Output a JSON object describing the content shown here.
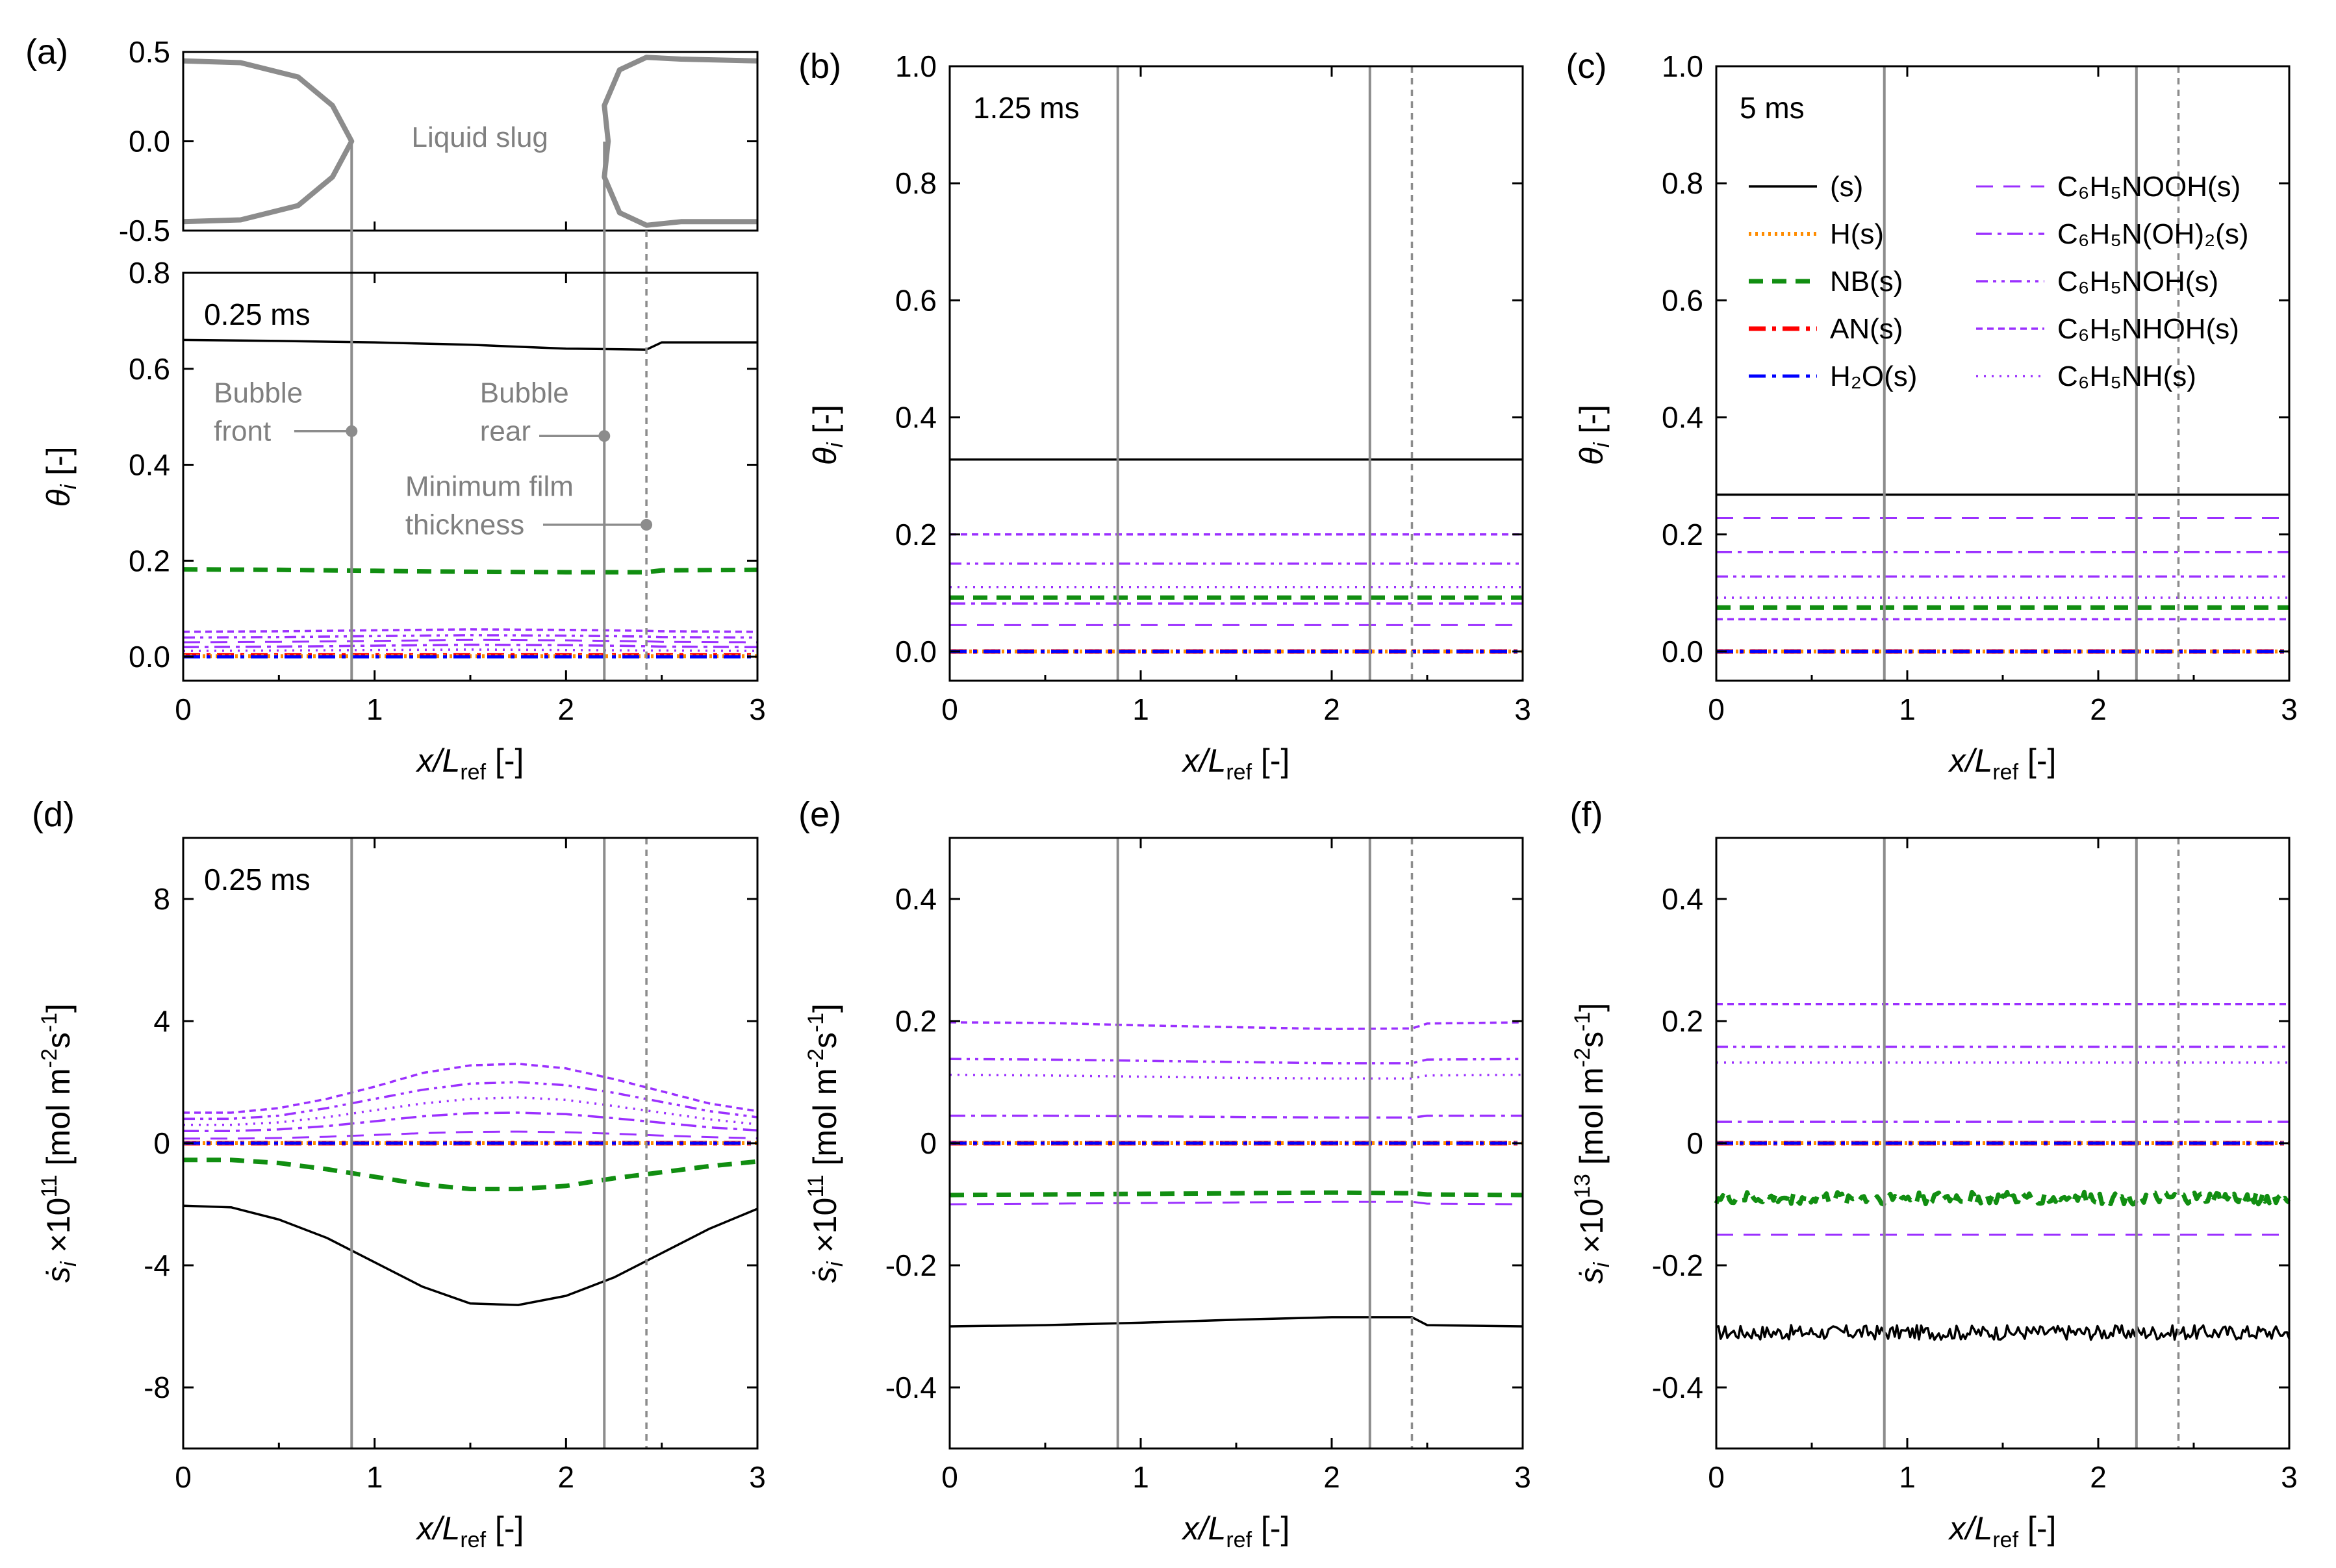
{
  "colors": {
    "solid": "#000000",
    "H": "#ff8c00",
    "NB": "#118e11",
    "AN": "#ff0000",
    "H2O": "#0000ff",
    "violet": "#9b30ff",
    "gray": "#8c8c8c",
    "bubble": "#8c8c8c"
  },
  "common": {
    "x_axis_title_plain": "x/L",
    "x_axis_title_sub": "ref",
    "x_axis_unit": "[-]",
    "x_ticks": [
      "0",
      "1",
      "2",
      "3"
    ],
    "xlim": [
      0,
      3
    ],
    "bubble_front_x": 0.88,
    "bubble_rear_x": 2.2,
    "min_film_x": 2.42
  },
  "annotations": {
    "liquid_slug": "Liquid slug",
    "bubble_front_1": "Bubble",
    "bubble_front_2": "front",
    "bubble_rear_1": "Bubble",
    "bubble_rear_2": "rear",
    "min_film_1": "Minimum film",
    "min_film_2": "thickness"
  },
  "legend": [
    {
      "key": "solid",
      "label": "(s)",
      "style": "solid",
      "color": "#000000"
    },
    {
      "key": "H",
      "label": "H(s)",
      "style": "dotted",
      "color": "#ff8c00"
    },
    {
      "key": "NB",
      "label": "NB(s)",
      "style": "dashed",
      "color": "#118e11"
    },
    {
      "key": "AN",
      "label": "AN(s)",
      "style": "dashdot",
      "color": "#ff0000"
    },
    {
      "key": "H2O",
      "label": "H₂O(s)",
      "style": "dashdot",
      "color": "#0000ff"
    },
    {
      "key": "C6H5NOOH",
      "label": "C₆H₅NOOH(s)",
      "style": "longdash",
      "color": "#9b30ff"
    },
    {
      "key": "C6H5NOH2",
      "label": "C₆H₅N(OH)₂(s)",
      "style": "dashdot",
      "color": "#9b30ff"
    },
    {
      "key": "C6H5NOH",
      "label": "C₆H₅NOH(s)",
      "style": "dashdotdot",
      "color": "#9b30ff"
    },
    {
      "key": "C6H5NHOH",
      "label": "C₆H₅NHOH(s)",
      "style": "shortdash",
      "color": "#9b30ff"
    },
    {
      "key": "C6H5NH",
      "label": "C₆H₅NH(s)",
      "style": "dot",
      "color": "#9b30ff"
    }
  ],
  "chart_data": [
    {
      "panel": "(a)-top",
      "type": "line",
      "title": "",
      "ylim": [
        -0.5,
        0.5
      ],
      "y_ticks": [
        "0.5",
        "0.0",
        "-0.5"
      ],
      "ylabel": "",
      "annotation": "Liquid slug",
      "series": [
        {
          "name": "bubble interface (front cap)",
          "x": [
            0.0,
            0.3,
            0.6,
            0.78,
            0.88,
            0.78,
            0.6,
            0.3,
            0.0
          ],
          "values": [
            0.45,
            0.44,
            0.36,
            0.2,
            0.0,
            -0.2,
            -0.36,
            -0.44,
            -0.45
          ]
        },
        {
          "name": "bubble interface (rear cap)",
          "x": [
            3.0,
            2.6,
            2.42,
            2.28,
            2.2,
            2.22,
            2.2,
            2.28,
            2.42,
            2.6,
            3.0
          ],
          "values": [
            0.45,
            0.46,
            0.47,
            0.4,
            0.2,
            0.0,
            -0.2,
            -0.4,
            -0.47,
            -0.45,
            -0.45
          ]
        }
      ]
    },
    {
      "panel": "(a)",
      "type": "line",
      "time": "0.25 ms",
      "ylabel": "θi [-]",
      "ylim": [
        -0.05,
        0.8
      ],
      "y_ticks": [
        "0.0",
        "0.2",
        "0.4",
        "0.6",
        "0.8"
      ],
      "x": [
        0,
        0.5,
        1,
        1.5,
        2,
        2.42,
        2.5,
        3
      ],
      "series": [
        {
          "name": "(s)",
          "values": [
            0.66,
            0.658,
            0.655,
            0.65,
            0.642,
            0.64,
            0.655,
            0.655
          ]
        },
        {
          "name": "NB(s)",
          "values": [
            0.182,
            0.181,
            0.179,
            0.177,
            0.176,
            0.176,
            0.18,
            0.181
          ]
        },
        {
          "name": "C6H5NHOH(s)",
          "values": [
            0.052,
            0.053,
            0.055,
            0.057,
            0.056,
            0.054,
            0.053,
            0.052
          ]
        },
        {
          "name": "C6H5NOH(s)",
          "values": [
            0.04,
            0.041,
            0.043,
            0.045,
            0.044,
            0.042,
            0.041,
            0.04
          ]
        },
        {
          "name": "C6H5NOOH(s)",
          "values": [
            0.03,
            0.031,
            0.033,
            0.035,
            0.034,
            0.032,
            0.031,
            0.03
          ]
        },
        {
          "name": "C6H5N(OH)2(s)",
          "values": [
            0.02,
            0.021,
            0.023,
            0.025,
            0.024,
            0.022,
            0.021,
            0.02
          ]
        },
        {
          "name": "C6H5NH(s)",
          "values": [
            0.012,
            0.013,
            0.014,
            0.015,
            0.014,
            0.013,
            0.013,
            0.012
          ]
        },
        {
          "name": "AN(s)",
          "values": [
            0.003,
            0.003,
            0.003,
            0.003,
            0.003,
            0.003,
            0.003,
            0.003
          ]
        },
        {
          "name": "H(s)",
          "values": [
            0.001,
            0.001,
            0.001,
            0.001,
            0.001,
            0.001,
            0.001,
            0.001
          ]
        },
        {
          "name": "H2O(s)",
          "values": [
            0.0,
            0.0,
            0.0,
            0.0,
            0.0,
            0.0,
            0.0,
            0.0
          ]
        }
      ]
    },
    {
      "panel": "(b)",
      "type": "line",
      "time": "1.25 ms",
      "ylabel": "θi [-]",
      "ylim": [
        -0.05,
        1.0
      ],
      "y_ticks": [
        "0.0",
        "0.2",
        "0.4",
        "0.6",
        "0.8",
        "1.0"
      ],
      "x": [
        0,
        3
      ],
      "series": [
        {
          "name": "(s)",
          "values": [
            0.328,
            0.328
          ]
        },
        {
          "name": "C6H5NHOH(s)",
          "values": [
            0.2,
            0.2
          ]
        },
        {
          "name": "C6H5NOH(s)",
          "values": [
            0.15,
            0.15
          ]
        },
        {
          "name": "C6H5NH(s)",
          "values": [
            0.11,
            0.11
          ]
        },
        {
          "name": "NB(s)",
          "values": [
            0.092,
            0.092
          ]
        },
        {
          "name": "C6H5N(OH)2(s)",
          "values": [
            0.082,
            0.082
          ]
        },
        {
          "name": "C6H5NOOH(s)",
          "values": [
            0.045,
            0.045
          ]
        },
        {
          "name": "AN(s)",
          "values": [
            0.0,
            0.0
          ]
        },
        {
          "name": "H(s)",
          "values": [
            0.0,
            0.0
          ]
        },
        {
          "name": "H2O(s)",
          "values": [
            0.0,
            0.0
          ]
        }
      ]
    },
    {
      "panel": "(c)",
      "type": "line",
      "time": "5 ms",
      "ylabel": "θi [-]",
      "ylim": [
        -0.05,
        1.0
      ],
      "y_ticks": [
        "0.0",
        "0.2",
        "0.4",
        "0.6",
        "0.8",
        "1.0"
      ],
      "x": [
        0,
        3
      ],
      "series": [
        {
          "name": "(s)",
          "values": [
            0.268,
            0.268
          ]
        },
        {
          "name": "C6H5NOOH(s)",
          "values": [
            0.228,
            0.228
          ]
        },
        {
          "name": "C6H5N(OH)2(s)",
          "values": [
            0.17,
            0.17
          ]
        },
        {
          "name": "C6H5NOH(s)",
          "values": [
            0.128,
            0.128
          ]
        },
        {
          "name": "C6H5NH(s)",
          "values": [
            0.092,
            0.092
          ]
        },
        {
          "name": "NB(s)",
          "values": [
            0.075,
            0.075
          ]
        },
        {
          "name": "C6H5NHOH(s)",
          "values": [
            0.055,
            0.055
          ]
        },
        {
          "name": "AN(s)",
          "values": [
            0.0,
            0.0
          ]
        },
        {
          "name": "H(s)",
          "values": [
            0.0,
            0.0
          ]
        },
        {
          "name": "H2O(s)",
          "values": [
            0.0,
            0.0
          ]
        }
      ]
    },
    {
      "panel": "(d)",
      "type": "line",
      "time": "0.25 ms",
      "ylabel_prefix": "ṡi ×10",
      "ylabel_exp": "11",
      "ylabel_unit": " [mol m",
      "ylabel_unit_exp1": "-2",
      "ylabel_unit_mid": "s",
      "ylabel_unit_exp2": "-1",
      "ylabel_unit_end": "]",
      "ylim": [
        -10,
        10
      ],
      "y_ticks": [
        "-8",
        "-4",
        "0",
        "4",
        "8"
      ],
      "x": [
        0,
        0.25,
        0.5,
        0.75,
        1,
        1.25,
        1.5,
        1.75,
        2,
        2.25,
        2.5,
        2.75,
        3
      ],
      "series": [
        {
          "name": "(s)",
          "values": [
            -2.05,
            -2.1,
            -2.5,
            -3.1,
            -3.9,
            -4.7,
            -5.25,
            -5.3,
            -5.0,
            -4.4,
            -3.6,
            -2.8,
            -2.15
          ]
        },
        {
          "name": "NB(s)",
          "values": [
            -0.55,
            -0.55,
            -0.65,
            -0.85,
            -1.1,
            -1.35,
            -1.5,
            -1.5,
            -1.4,
            -1.15,
            -0.95,
            -0.75,
            -0.6
          ]
        },
        {
          "name": "C6H5NHOH(s)",
          "values": [
            1.0,
            1.0,
            1.15,
            1.45,
            1.85,
            2.3,
            2.55,
            2.6,
            2.45,
            2.1,
            1.7,
            1.3,
            1.05
          ]
        },
        {
          "name": "C6H5NOH(s)",
          "values": [
            0.8,
            0.8,
            0.9,
            1.15,
            1.45,
            1.75,
            1.95,
            2.0,
            1.9,
            1.65,
            1.35,
            1.05,
            0.85
          ]
        },
        {
          "name": "C6H5NH(s)",
          "values": [
            0.6,
            0.6,
            0.68,
            0.85,
            1.08,
            1.3,
            1.45,
            1.5,
            1.42,
            1.22,
            1.0,
            0.78,
            0.62
          ]
        },
        {
          "name": "C6H5N(OH)2(s)",
          "values": [
            0.4,
            0.4,
            0.45,
            0.56,
            0.72,
            0.88,
            0.98,
            1.0,
            0.95,
            0.82,
            0.67,
            0.52,
            0.42
          ]
        },
        {
          "name": "C6H5NOOH(s)",
          "values": [
            0.15,
            0.15,
            0.17,
            0.21,
            0.27,
            0.33,
            0.37,
            0.38,
            0.36,
            0.31,
            0.25,
            0.2,
            0.16
          ]
        },
        {
          "name": "AN(s)",
          "values": [
            0.0,
            0.0,
            0.0,
            0.0,
            0.0,
            0.0,
            0.0,
            0.0,
            0.0,
            0.0,
            0.0,
            0.0,
            0.0
          ]
        },
        {
          "name": "H(s)",
          "values": [
            0.0,
            0.0,
            0.0,
            0.0,
            0.0,
            0.0,
            0.0,
            0.0,
            0.0,
            0.0,
            0.0,
            0.0,
            0.0
          ]
        },
        {
          "name": "H2O(s)",
          "values": [
            0.0,
            0.0,
            0.0,
            0.0,
            0.0,
            0.0,
            0.0,
            0.0,
            0.0,
            0.0,
            0.0,
            0.0,
            0.0
          ]
        }
      ]
    },
    {
      "panel": "(e)",
      "type": "line",
      "time": "",
      "ylabel_prefix": "ṡi ×10",
      "ylabel_exp": "11",
      "ylim": [
        -0.5,
        0.5
      ],
      "y_ticks": [
        "-0.4",
        "-0.2",
        "0",
        "0.2",
        "0.4"
      ],
      "x": [
        0,
        0.5,
        1,
        1.5,
        2,
        2.42,
        2.5,
        3
      ],
      "series": [
        {
          "name": "(s)",
          "values": [
            -0.3,
            -0.298,
            -0.294,
            -0.289,
            -0.285,
            -0.285,
            -0.298,
            -0.3
          ]
        },
        {
          "name": "C6H5NHOH(s)",
          "values": [
            0.198,
            0.197,
            0.193,
            0.19,
            0.187,
            0.188,
            0.196,
            0.198
          ]
        },
        {
          "name": "C6H5NOH(s)",
          "values": [
            0.138,
            0.137,
            0.135,
            0.133,
            0.131,
            0.131,
            0.137,
            0.138
          ]
        },
        {
          "name": "C6H5NH(s)",
          "values": [
            0.112,
            0.111,
            0.109,
            0.107,
            0.106,
            0.106,
            0.111,
            0.112
          ]
        },
        {
          "name": "C6H5N(OH)2(s)",
          "values": [
            0.045,
            0.045,
            0.044,
            0.043,
            0.042,
            0.042,
            0.045,
            0.045
          ]
        },
        {
          "name": "NB(s)",
          "values": [
            -0.085,
            -0.084,
            -0.083,
            -0.082,
            -0.081,
            -0.082,
            -0.084,
            -0.085
          ]
        },
        {
          "name": "C6H5NOOH(s)",
          "values": [
            -0.1,
            -0.099,
            -0.098,
            -0.097,
            -0.096,
            -0.096,
            -0.099,
            -0.1
          ]
        },
        {
          "name": "AN(s)",
          "values": [
            0.0,
            0.0,
            0.0,
            0.0,
            0.0,
            0.0,
            0.0,
            0.0
          ]
        },
        {
          "name": "H(s)",
          "values": [
            0.0,
            0.0,
            0.0,
            0.0,
            0.0,
            0.0,
            0.0,
            0.0
          ]
        },
        {
          "name": "H2O(s)",
          "values": [
            0.0,
            0.0,
            0.0,
            0.0,
            0.0,
            0.0,
            0.0,
            0.0
          ]
        }
      ]
    },
    {
      "panel": "(f)",
      "type": "line",
      "time": "",
      "ylabel_prefix": "ṡi ×10",
      "ylabel_exp": "13",
      "ylim": [
        -0.5,
        0.5
      ],
      "y_ticks": [
        "-0.4",
        "-0.2",
        "0",
        "0.2",
        "0.4"
      ],
      "x": [
        0,
        3
      ],
      "series": [
        {
          "name": "(s)",
          "values": [
            -0.31,
            -0.31
          ],
          "noise": 0.012
        },
        {
          "name": "C6H5NHOH(s)",
          "values": [
            0.228,
            0.228
          ]
        },
        {
          "name": "C6H5NOH(s)",
          "values": [
            0.158,
            0.158
          ]
        },
        {
          "name": "C6H5NH(s)",
          "values": [
            0.132,
            0.132
          ]
        },
        {
          "name": "C6H5N(OH)2(s)",
          "values": [
            0.035,
            0.035
          ]
        },
        {
          "name": "NB(s)",
          "values": [
            -0.09,
            -0.09
          ],
          "noise": 0.01
        },
        {
          "name": "C6H5NOOH(s)",
          "values": [
            -0.15,
            -0.15
          ]
        },
        {
          "name": "AN(s)",
          "values": [
            0.0,
            0.0
          ]
        },
        {
          "name": "H(s)",
          "values": [
            0.0,
            0.0
          ]
        },
        {
          "name": "H2O(s)",
          "values": [
            0.0,
            0.0
          ]
        }
      ]
    }
  ],
  "panel_labels": {
    "a": "(a)",
    "b": "(b)",
    "c": "(c)",
    "d": "(d)",
    "e": "(e)",
    "f": "(f)"
  }
}
